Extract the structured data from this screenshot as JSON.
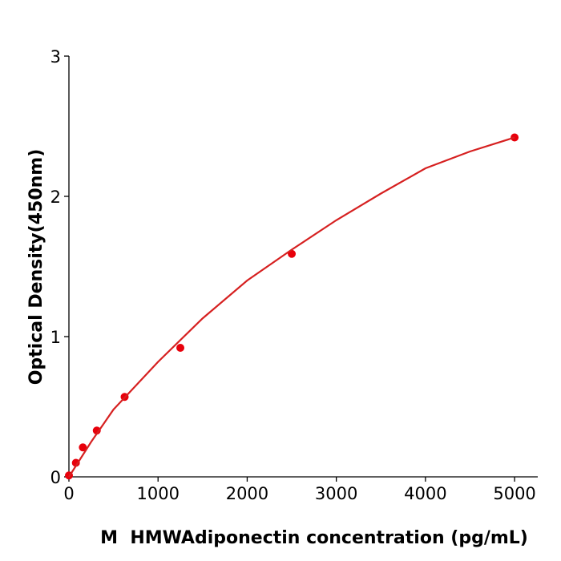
{
  "chart_data": {
    "type": "scatter",
    "x_label": "M  HMWAdiponectin concentration (pg/mL)",
    "y_label": "Optical Density(450nm)",
    "xlim": [
      0,
      5260
    ],
    "xticks": [
      0,
      1000,
      2000,
      3000,
      4000,
      5000
    ],
    "ylim": [
      0,
      3
    ],
    "yticks": [
      0,
      1,
      2,
      3
    ],
    "series": [
      {
        "mode": "markers",
        "color": "#e8000b",
        "x": [
          0,
          78.125,
          156.25,
          312.5,
          625,
          1250,
          2500,
          5000
        ],
        "values": [
          0.01,
          0.1,
          0.21,
          0.33,
          0.57,
          0.92,
          1.59,
          2.42
        ]
      },
      {
        "mode": "line",
        "color": "#d62020",
        "x": [
          0,
          250,
          500,
          1000,
          1500,
          2000,
          2500,
          3000,
          3500,
          4000,
          4500,
          5000
        ],
        "values": [
          0,
          0.25,
          0.48,
          0.82,
          1.13,
          1.4,
          1.62,
          1.83,
          2.02,
          2.2,
          2.32,
          2.42
        ]
      }
    ]
  }
}
